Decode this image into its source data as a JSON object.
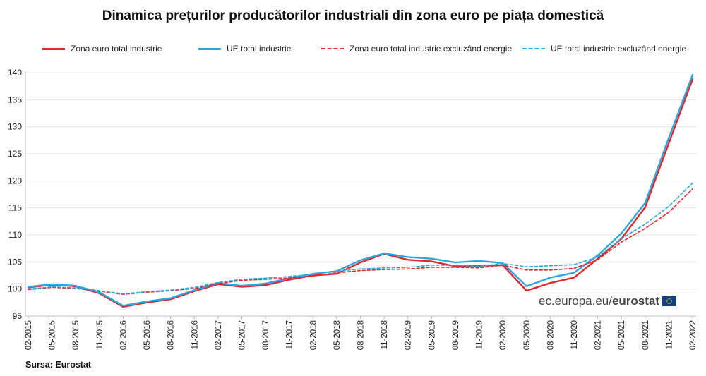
{
  "title": "Dinamica prețurilor producătorilor industriali din zona euro pe piața domestică",
  "source": "Sursa: Eurostat",
  "brand": {
    "prefix": "ec.europa.eu/",
    "name": "eurostat",
    "logo_icon": "eu-flag-icon"
  },
  "chart_data": {
    "type": "line",
    "title": "Dinamica prețurilor producătorilor industriali din zona euro pe piața domestică",
    "xlabel": "",
    "ylabel": "",
    "ylim": [
      95,
      140
    ],
    "yticks": [
      95,
      100,
      105,
      110,
      115,
      120,
      125,
      130,
      135,
      140
    ],
    "grid": "horizontal",
    "legend_position": "top",
    "x": [
      "02-2015",
      "05-2015",
      "08-2015",
      "11-2015",
      "02-2016",
      "05-2016",
      "08-2016",
      "11-2016",
      "02-2017",
      "05-2017",
      "08-2017",
      "11-2017",
      "02-2018",
      "05-2018",
      "08-2018",
      "11-2018",
      "02-2019",
      "05-2019",
      "08-2019",
      "11-2019",
      "02-2020",
      "05-2020",
      "08-2020",
      "11-2020",
      "02-2021",
      "05-2021",
      "08-2021",
      "11-2021",
      "02-2022"
    ],
    "series": [
      {
        "name": "Zona euro total industrie",
        "color": "#e0282e",
        "dash": "solid",
        "values": [
          100.3,
          100.8,
          100.5,
          99.2,
          96.7,
          97.5,
          98.1,
          99.6,
          100.9,
          100.4,
          100.7,
          101.7,
          102.5,
          102.8,
          104.9,
          106.5,
          105.4,
          105.1,
          104.2,
          104.3,
          104.4,
          99.7,
          101.1,
          102.1,
          105.6,
          109.3,
          115.1,
          127.0,
          138.8
        ]
      },
      {
        "name": "UE total industrie",
        "color": "#2da7df",
        "dash": "solid",
        "values": [
          100.4,
          100.9,
          100.6,
          99.4,
          96.9,
          97.7,
          98.3,
          99.8,
          101.1,
          100.6,
          101.0,
          102.0,
          102.8,
          103.3,
          105.3,
          106.6,
          105.9,
          105.6,
          104.9,
          105.2,
          104.8,
          100.5,
          102.1,
          103.0,
          106.2,
          110.3,
          115.9,
          128.0,
          139.6
        ]
      },
      {
        "name": "Zona euro total industrie excluzând energie",
        "color": "#e0282e",
        "dash": "dashed",
        "values": [
          99.9,
          100.3,
          100.1,
          99.6,
          99.0,
          99.4,
          99.7,
          100.1,
          101.0,
          101.6,
          101.8,
          102.0,
          102.4,
          103.0,
          103.4,
          103.6,
          103.7,
          104.0,
          104.0,
          103.9,
          104.4,
          103.5,
          103.5,
          103.8,
          105.4,
          108.7,
          111.2,
          114.2,
          118.5
        ]
      },
      {
        "name": "UE total industrie excluzând energie",
        "color": "#2da7df",
        "dash": "dashed",
        "values": [
          100.0,
          100.4,
          100.2,
          99.7,
          99.1,
          99.5,
          99.8,
          100.3,
          101.2,
          101.8,
          102.0,
          102.3,
          102.7,
          103.3,
          103.7,
          103.9,
          104.0,
          104.4,
          104.4,
          104.2,
          104.7,
          104.1,
          104.3,
          104.5,
          105.9,
          109.3,
          112.0,
          115.3,
          119.6
        ]
      }
    ]
  }
}
